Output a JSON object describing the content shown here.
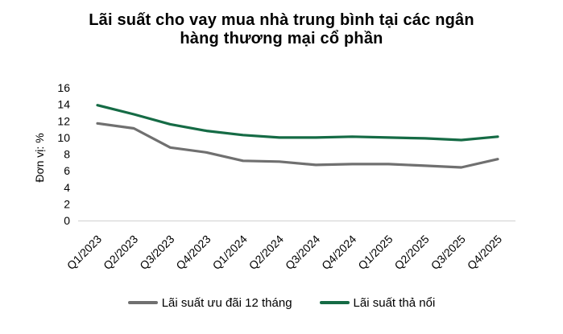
{
  "title_lines": [
    "Lãi suất cho vay mua nhà trung bình tại các ngân",
    "hàng thương mại cổ phần"
  ],
  "chart_data": {
    "type": "line",
    "title": "Lãi suất cho vay mua nhà trung bình tại các ngân hàng thương mại cổ phần",
    "categories": [
      "Q1/2023",
      "Q2/2023",
      "Q3/2023",
      "Q4/2023",
      "Q1/2024",
      "Q2/2024",
      "Q3/2024",
      "Q4/2024",
      "Q1/2025",
      "Q2/2025",
      "Q3/2025",
      "Q4/2025"
    ],
    "series": [
      {
        "name": "Lãi suất ưu đãi 12 tháng",
        "color": "#707070",
        "values": [
          11.7,
          11.1,
          8.8,
          8.2,
          7.2,
          7.1,
          6.7,
          6.8,
          6.8,
          6.6,
          6.4,
          7.4
        ]
      },
      {
        "name": "Lãi suất thả nổi",
        "color": "#156b45",
        "values": [
          13.9,
          12.8,
          11.6,
          10.8,
          10.3,
          10.0,
          10.0,
          10.1,
          10.0,
          9.9,
          9.7,
          10.1
        ]
      }
    ],
    "xlabel": "",
    "ylabel": "Đơn vị: %",
    "ylim": [
      0,
      16
    ],
    "y_tick_step": 2,
    "grid": false,
    "legend_position": "bottom",
    "axis_line_color": "#d6d6d6"
  }
}
